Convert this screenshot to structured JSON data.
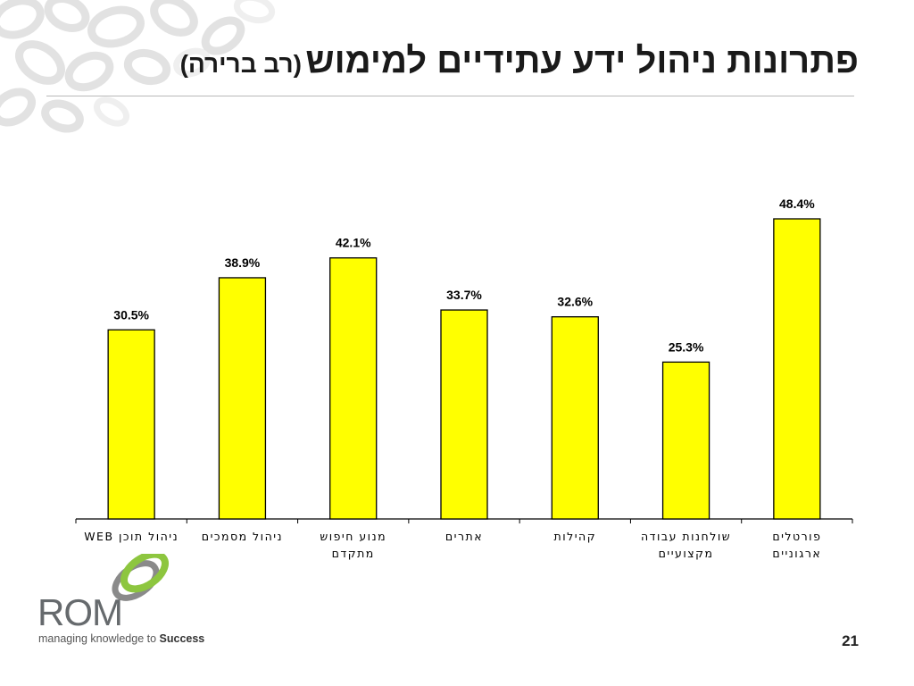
{
  "slide": {
    "title_main": "פתרונות ניהול ידע עתידיים למימוש",
    "title_sub": "(רב ברירה)",
    "page_number": "21"
  },
  "logo": {
    "wordmark": "ROM",
    "tagline_prefix": "managing knowledge to ",
    "tagline_bold": "Success",
    "colors": {
      "green": "#8dc63f",
      "gray": "#6d6e70"
    }
  },
  "chart_data": {
    "type": "bar",
    "categories": [
      [
        "ניהול תוכן WEB"
      ],
      [
        "ניהול מסמכים"
      ],
      [
        "מנוע חיפוש",
        "מתקדם"
      ],
      [
        "אתרים"
      ],
      [
        "קהילות"
      ],
      [
        "שולחנות עבודה",
        "מקצועיים"
      ],
      [
        "פורטלים",
        "ארגוניים"
      ]
    ],
    "values": [
      30.5,
      38.9,
      42.1,
      33.7,
      32.6,
      25.3,
      48.4
    ],
    "value_labels": [
      "30.5%",
      "38.9%",
      "42.1%",
      "33.7%",
      "32.6%",
      "25.3%",
      "48.4%"
    ],
    "ylim": [
      0,
      55
    ],
    "grid": false,
    "bar_color": "#ffff00",
    "bar_border": "#000000"
  }
}
